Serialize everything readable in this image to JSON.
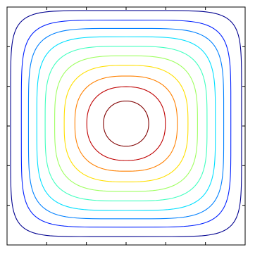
{
  "chart_data": {
    "type": "contour",
    "title": "",
    "xlabel": "",
    "ylabel": "",
    "xlim": [
      0,
      1
    ],
    "ylim": [
      0,
      1
    ],
    "grid": false,
    "legend": "none",
    "tick_labels_shown": false,
    "x_ticks": [
      0.1667,
      0.3333,
      0.5,
      0.6667,
      0.8333
    ],
    "y_ticks": [
      0.1667,
      0.3333,
      0.5,
      0.6667,
      0.8333
    ],
    "center": [
      0.5,
      0.51
    ],
    "levels": [
      {
        "level": 1,
        "half_width": 0.485,
        "half_height": 0.475,
        "squareness": 7.0,
        "color": "#00008f"
      },
      {
        "level": 2,
        "half_width": 0.44,
        "half_height": 0.435,
        "squareness": 5.5,
        "color": "#0020ff"
      },
      {
        "level": 3,
        "half_width": 0.41,
        "half_height": 0.4,
        "squareness": 4.8,
        "color": "#0080ff"
      },
      {
        "level": 4,
        "half_width": 0.375,
        "half_height": 0.365,
        "squareness": 4.2,
        "color": "#00dfff"
      },
      {
        "level": 5,
        "half_width": 0.34,
        "half_height": 0.325,
        "squareness": 3.7,
        "color": "#40ffbf"
      },
      {
        "level": 6,
        "half_width": 0.3,
        "half_height": 0.285,
        "squareness": 3.3,
        "color": "#9fff60"
      },
      {
        "level": 7,
        "half_width": 0.26,
        "half_height": 0.245,
        "squareness": 2.9,
        "color": "#ffdf00"
      },
      {
        "level": 8,
        "half_width": 0.215,
        "half_height": 0.2,
        "squareness": 2.6,
        "color": "#ff8000"
      },
      {
        "level": 9,
        "half_width": 0.165,
        "half_height": 0.155,
        "squareness": 2.3,
        "color": "#bf0000"
      },
      {
        "level": 10,
        "half_width": 0.095,
        "half_height": 0.095,
        "squareness": 2.1,
        "color": "#800000"
      }
    ]
  }
}
